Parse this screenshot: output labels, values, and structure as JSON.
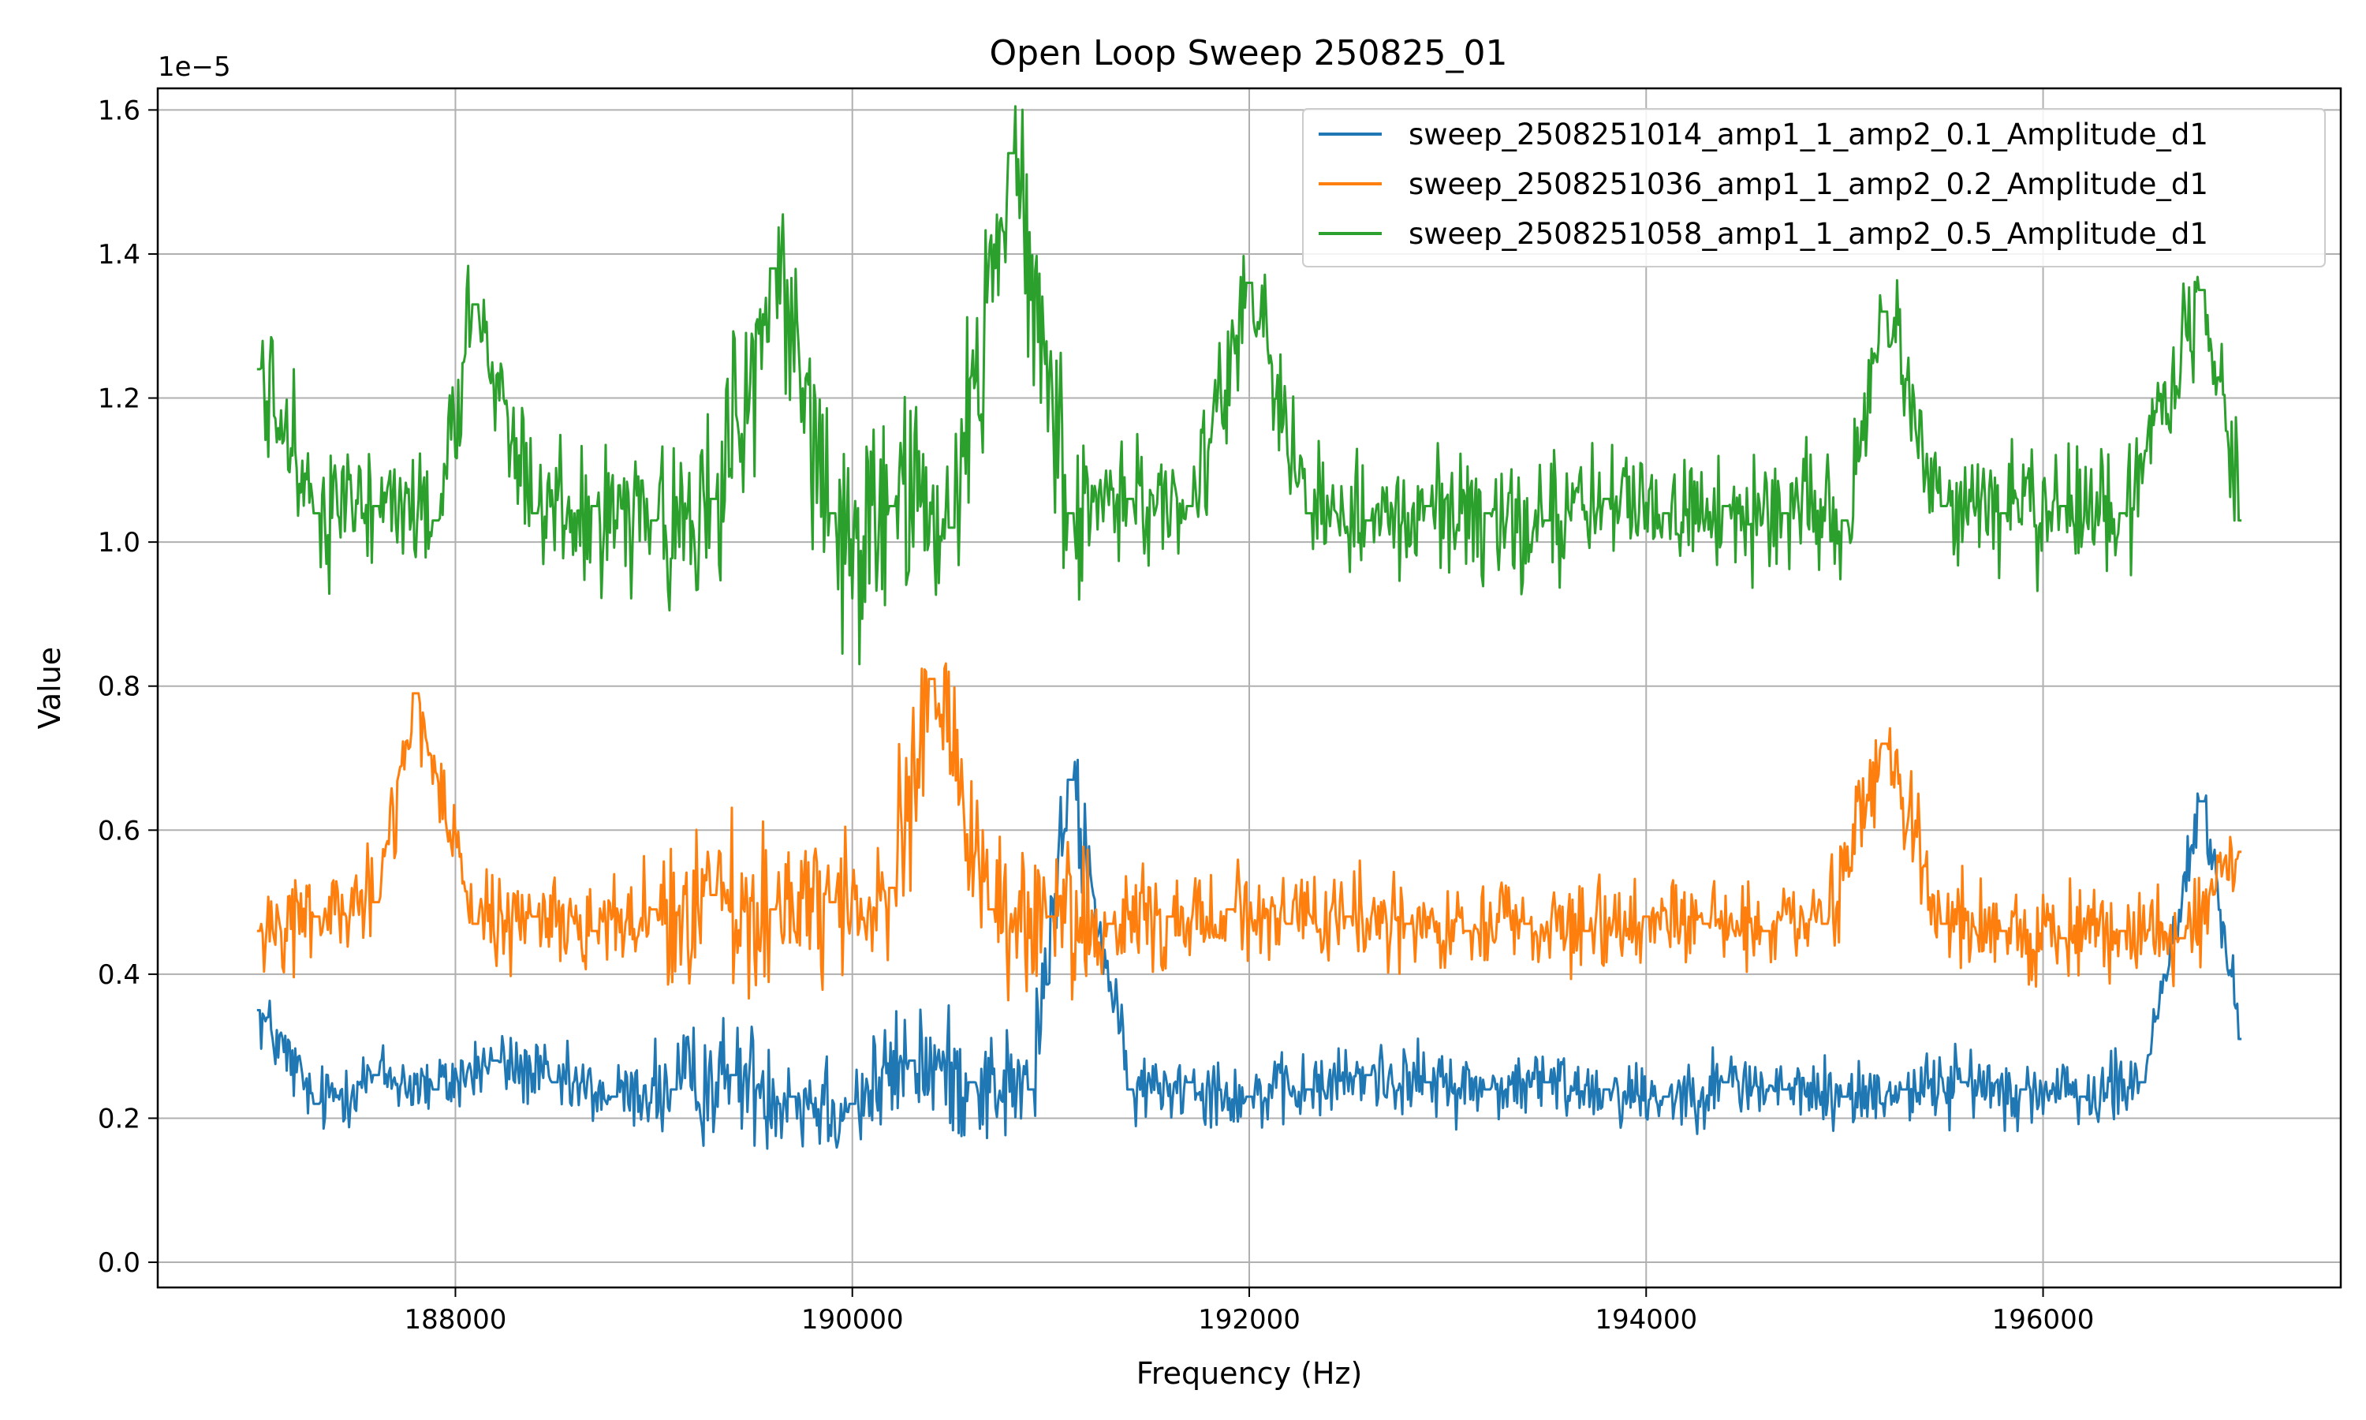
{
  "chart_data": {
    "type": "line",
    "title": "Open Loop Sweep 250825_01",
    "xlabel": "Frequency (Hz)",
    "ylabel": "Value",
    "y_offset_label": "1e−5",
    "xlim": [
      186500,
      197500
    ],
    "ylim": [
      -3.5e-07,
      1.63e-05
    ],
    "x_ticks": [
      188000,
      190000,
      192000,
      194000,
      196000
    ],
    "x_tick_labels": [
      "188000",
      "190000",
      "192000",
      "194000",
      "196000"
    ],
    "y_ticks": [
      0,
      2e-06,
      4e-06,
      6e-06,
      8e-06,
      1e-05,
      1.2e-05,
      1.4e-05,
      1.6e-05
    ],
    "y_tick_labels": [
      "0.0",
      "0.2",
      "0.4",
      "0.6",
      "0.8",
      "1.0",
      "1.2",
      "1.4",
      "1.6"
    ],
    "grid": true,
    "legend_position": "top-right",
    "x_range_of_sweep": [
      187000,
      197000
    ],
    "series": [
      {
        "name": "sweep_2508251014_amp1_1_amp2_0.1_Amplitude_d1",
        "color": "#1f77b4",
        "values": [
          [
            187000,
            3.5e-06
          ],
          [
            187300,
            2.2e-06
          ],
          [
            187600,
            2.6e-06
          ],
          [
            187900,
            2.4e-06
          ],
          [
            188200,
            2.8e-06
          ],
          [
            188500,
            2.5e-06
          ],
          [
            188800,
            2.3e-06
          ],
          [
            189100,
            2.4e-06
          ],
          [
            189400,
            2.6e-06
          ],
          [
            189700,
            2.3e-06
          ],
          [
            190000,
            2.2e-06
          ],
          [
            190300,
            2.8e-06
          ],
          [
            190600,
            2.5e-06
          ],
          [
            190900,
            2.4e-06
          ],
          [
            191100,
            6.7e-06
          ],
          [
            191400,
            2.4e-06
          ],
          [
            191700,
            2.5e-06
          ],
          [
            192000,
            2.3e-06
          ],
          [
            192300,
            2.4e-06
          ],
          [
            192600,
            2.6e-06
          ],
          [
            192900,
            2.5e-06
          ],
          [
            193200,
            2.4e-06
          ],
          [
            193500,
            2.5e-06
          ],
          [
            193800,
            2.4e-06
          ],
          [
            194100,
            2.3e-06
          ],
          [
            194400,
            2.5e-06
          ],
          [
            194700,
            2.4e-06
          ],
          [
            195000,
            2.3e-06
          ],
          [
            195300,
            2.4e-06
          ],
          [
            195600,
            2.5e-06
          ],
          [
            195900,
            2.4e-06
          ],
          [
            196200,
            2.3e-06
          ],
          [
            196500,
            2.5e-06
          ],
          [
            196800,
            6.4e-06
          ],
          [
            197000,
            3.1e-06
          ]
        ]
      },
      {
        "name": "sweep_2508251036_amp1_1_amp2_0.2_Amplitude_d1",
        "color": "#ff7f0e",
        "values": [
          [
            187000,
            4.6e-06
          ],
          [
            187300,
            4.8e-06
          ],
          [
            187600,
            5e-06
          ],
          [
            187800,
            7.9e-06
          ],
          [
            188100,
            4.7e-06
          ],
          [
            188400,
            4.8e-06
          ],
          [
            188700,
            4.6e-06
          ],
          [
            189000,
            4.9e-06
          ],
          [
            189300,
            5.1e-06
          ],
          [
            189600,
            4.9e-06
          ],
          [
            189900,
            5e-06
          ],
          [
            190200,
            5.2e-06
          ],
          [
            190400,
            8.1e-06
          ],
          [
            190700,
            4.9e-06
          ],
          [
            191000,
            4.8e-06
          ],
          [
            191300,
            4.7e-06
          ],
          [
            191600,
            4.8e-06
          ],
          [
            191900,
            4.9e-06
          ],
          [
            192200,
            4.7e-06
          ],
          [
            192500,
            4.8e-06
          ],
          [
            192800,
            4.7e-06
          ],
          [
            193100,
            4.6e-06
          ],
          [
            193400,
            4.7e-06
          ],
          [
            193700,
            4.6e-06
          ],
          [
            194000,
            4.8e-06
          ],
          [
            194300,
            4.7e-06
          ],
          [
            194600,
            4.6e-06
          ],
          [
            194900,
            4.7e-06
          ],
          [
            195200,
            7.2e-06
          ],
          [
            195500,
            4.7e-06
          ],
          [
            195800,
            4.6e-06
          ],
          [
            196100,
            4.5e-06
          ],
          [
            196400,
            4.6e-06
          ],
          [
            196700,
            4.5e-06
          ],
          [
            197000,
            5.7e-06
          ]
        ]
      },
      {
        "name": "sweep_2508251058_amp1_1_amp2_0.5_Amplitude_d1",
        "color": "#2ca02c",
        "values": [
          [
            187000,
            1.24e-05
          ],
          [
            187300,
            1.04e-05
          ],
          [
            187600,
            1.05e-05
          ],
          [
            187900,
            1.03e-05
          ],
          [
            188100,
            1.33e-05
          ],
          [
            188400,
            1.04e-05
          ],
          [
            188700,
            1.05e-05
          ],
          [
            189000,
            1.03e-05
          ],
          [
            189300,
            1.06e-05
          ],
          [
            189600,
            1.38e-05
          ],
          [
            189900,
            1.04e-05
          ],
          [
            190200,
            1.05e-05
          ],
          [
            190500,
            1.02e-05
          ],
          [
            190800,
            1.54e-05
          ],
          [
            191100,
            1.04e-05
          ],
          [
            191400,
            1.06e-05
          ],
          [
            191700,
            1.05e-05
          ],
          [
            192000,
            1.36e-05
          ],
          [
            192300,
            1.04e-05
          ],
          [
            192600,
            1.03e-05
          ],
          [
            192900,
            1.05e-05
          ],
          [
            193200,
            1.04e-05
          ],
          [
            193500,
            1.03e-05
          ],
          [
            193800,
            1.06e-05
          ],
          [
            194100,
            1.04e-05
          ],
          [
            194400,
            1.05e-05
          ],
          [
            194700,
            1.04e-05
          ],
          [
            195000,
            1.03e-05
          ],
          [
            195200,
            1.32e-05
          ],
          [
            195500,
            1.05e-05
          ],
          [
            195800,
            1.04e-05
          ],
          [
            196100,
            1.05e-05
          ],
          [
            196400,
            1.04e-05
          ],
          [
            196800,
            1.35e-05
          ],
          [
            197000,
            1.03e-05
          ]
        ]
      }
    ]
  }
}
